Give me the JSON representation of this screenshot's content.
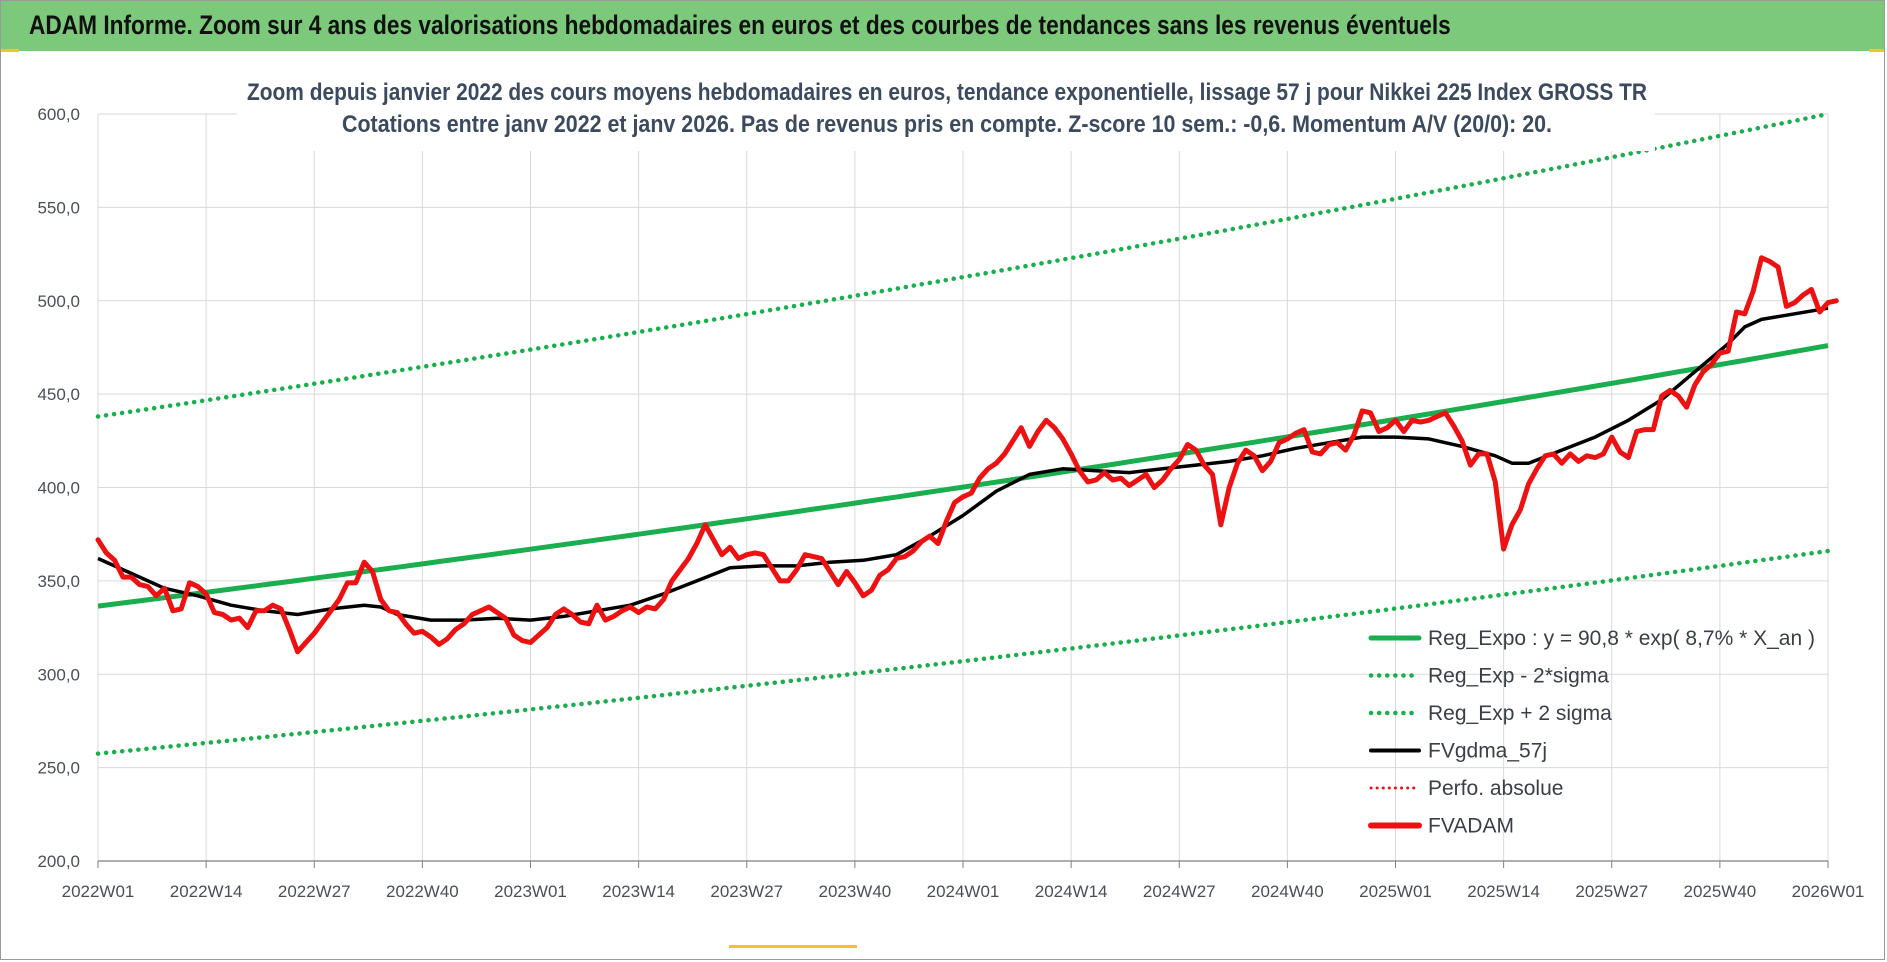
{
  "banner": {
    "title": "ADAM Informe. Zoom sur 4 ans des valorisations hebdomadaires en euros et des courbes de tendances sans les revenus éventuels"
  },
  "colors": {
    "banner": "#7dc97b",
    "reg_expo": "#1aae4e",
    "sigma": "#1aae4e",
    "fvgdma": "#000000",
    "perfo": "#e8141b",
    "fvadam": "#ee1111",
    "grid": "#d9d9d9",
    "title_text": "#3b4a5e",
    "accent": "#f2c230"
  },
  "chart_data": {
    "type": "line",
    "title": [
      "Zoom depuis janvier 2022 des cours moyens hebdomadaires en euros, tendance exponentielle, lissage 57 j pour Nikkei 225 Index GROSS TR",
      "Cotations entre janv 2022 et janv 2026. Pas de revenus pris en compte. Z-score 10 sem.: -0,6. Momentum A/V (20/0): 20."
    ],
    "ylim": [
      200,
      600
    ],
    "yticks": [
      "200,0",
      "250,0",
      "300,0",
      "350,0",
      "400,0",
      "450,0",
      "500,0",
      "550,0",
      "600,0"
    ],
    "x_range_weeks": [
      0,
      208
    ],
    "xticks": [
      {
        "w": 0,
        "label": "2022W01"
      },
      {
        "w": 13,
        "label": "2022W14"
      },
      {
        "w": 26,
        "label": "2022W27"
      },
      {
        "w": 39,
        "label": "2022W40"
      },
      {
        "w": 52,
        "label": "2023W01"
      },
      {
        "w": 65,
        "label": "2023W14"
      },
      {
        "w": 78,
        "label": "2023W27"
      },
      {
        "w": 91,
        "label": "2023W40"
      },
      {
        "w": 104,
        "label": "2024W01"
      },
      {
        "w": 117,
        "label": "2024W14"
      },
      {
        "w": 130,
        "label": "2024W27"
      },
      {
        "w": 143,
        "label": "2024W40"
      },
      {
        "w": 156,
        "label": "2025W01"
      },
      {
        "w": 169,
        "label": "2025W14"
      },
      {
        "w": 182,
        "label": "2025W27"
      },
      {
        "w": 195,
        "label": "2025W40"
      },
      {
        "w": 208,
        "label": "2026W01"
      }
    ],
    "series": [
      {
        "name": "Reg_Expo : y = 90,8 * exp( 8,7% *  X_an )",
        "key": "reg_expo",
        "style": "solid-thick",
        "start": [
          0,
          336.5
        ],
        "end": [
          208,
          476
        ]
      },
      {
        "name": "Reg_Exp - 2*sigma",
        "key": "reg_minus",
        "style": "dotted",
        "start": [
          0,
          257.5
        ],
        "end": [
          208,
          366
        ]
      },
      {
        "name": "Reg_Exp + 2 sigma",
        "key": "reg_plus",
        "style": "dotted",
        "start": [
          0,
          438
        ],
        "end": [
          208,
          600
        ]
      },
      {
        "name": "FVgdma_57j",
        "key": "fvgdma",
        "style": "solid",
        "points": [
          [
            0,
            362
          ],
          [
            4,
            354
          ],
          [
            8,
            346
          ],
          [
            10,
            344
          ],
          [
            12,
            342
          ],
          [
            16,
            337
          ],
          [
            20,
            334
          ],
          [
            24,
            332
          ],
          [
            28,
            335
          ],
          [
            32,
            337
          ],
          [
            34,
            336
          ],
          [
            36,
            332
          ],
          [
            40,
            329
          ],
          [
            44,
            329
          ],
          [
            48,
            330
          ],
          [
            52,
            329
          ],
          [
            56,
            331
          ],
          [
            60,
            334
          ],
          [
            64,
            337
          ],
          [
            68,
            343
          ],
          [
            72,
            350
          ],
          [
            76,
            357
          ],
          [
            80,
            358
          ],
          [
            84,
            358
          ],
          [
            88,
            360
          ],
          [
            92,
            361
          ],
          [
            96,
            364
          ],
          [
            100,
            374
          ],
          [
            104,
            385
          ],
          [
            108,
            398
          ],
          [
            112,
            407
          ],
          [
            116,
            410
          ],
          [
            120,
            409
          ],
          [
            124,
            408
          ],
          [
            128,
            410
          ],
          [
            132,
            412
          ],
          [
            136,
            414
          ],
          [
            140,
            417
          ],
          [
            144,
            421
          ],
          [
            148,
            424
          ],
          [
            152,
            427
          ],
          [
            156,
            427
          ],
          [
            160,
            426
          ],
          [
            164,
            422
          ],
          [
            168,
            417
          ],
          [
            170,
            413
          ],
          [
            172,
            413
          ],
          [
            176,
            420
          ],
          [
            180,
            427
          ],
          [
            184,
            436
          ],
          [
            188,
            447
          ],
          [
            192,
            462
          ],
          [
            196,
            477
          ],
          [
            198,
            486
          ],
          [
            200,
            490
          ],
          [
            204,
            493
          ],
          [
            208,
            496
          ]
        ]
      },
      {
        "name": "Perfo. absolue",
        "key": "perfo",
        "style": "dotted-red",
        "points": []
      },
      {
        "name": "FVADAM",
        "key": "fvadam",
        "style": "solid-thick-red",
        "points": [
          [
            0,
            372
          ],
          [
            1,
            365
          ],
          [
            2,
            361
          ],
          [
            3,
            352
          ],
          [
            4,
            352
          ],
          [
            5,
            348
          ],
          [
            6,
            347
          ],
          [
            7,
            342
          ],
          [
            8,
            346
          ],
          [
            9,
            334
          ],
          [
            10,
            335
          ],
          [
            11,
            349
          ],
          [
            12,
            347
          ],
          [
            13,
            343
          ],
          [
            14,
            333
          ],
          [
            15,
            332
          ],
          [
            16,
            329
          ],
          [
            17,
            330
          ],
          [
            18,
            325
          ],
          [
            19,
            334
          ],
          [
            20,
            334
          ],
          [
            21,
            337
          ],
          [
            22,
            335
          ],
          [
            23,
            324
          ],
          [
            24,
            312
          ],
          [
            25,
            317
          ],
          [
            26,
            322
          ],
          [
            27,
            328
          ],
          [
            28,
            334
          ],
          [
            29,
            340
          ],
          [
            30,
            349
          ],
          [
            31,
            349
          ],
          [
            32,
            360
          ],
          [
            33,
            355
          ],
          [
            34,
            340
          ],
          [
            35,
            334
          ],
          [
            36,
            333
          ],
          [
            37,
            327
          ],
          [
            38,
            322
          ],
          [
            39,
            323
          ],
          [
            40,
            320
          ],
          [
            41,
            316
          ],
          [
            42,
            319
          ],
          [
            43,
            324
          ],
          [
            44,
            327
          ],
          [
            45,
            332
          ],
          [
            46,
            334
          ],
          [
            47,
            336
          ],
          [
            48,
            333
          ],
          [
            49,
            330
          ],
          [
            50,
            321
          ],
          [
            51,
            318
          ],
          [
            52,
            317
          ],
          [
            53,
            321
          ],
          [
            54,
            325
          ],
          [
            55,
            332
          ],
          [
            56,
            335
          ],
          [
            57,
            332
          ],
          [
            58,
            328
          ],
          [
            59,
            327
          ],
          [
            60,
            337
          ],
          [
            61,
            329
          ],
          [
            62,
            331
          ],
          [
            63,
            334
          ],
          [
            64,
            336
          ],
          [
            65,
            333
          ],
          [
            66,
            336
          ],
          [
            67,
            335
          ],
          [
            68,
            340
          ],
          [
            69,
            350
          ],
          [
            70,
            356
          ],
          [
            71,
            362
          ],
          [
            72,
            370
          ],
          [
            73,
            380
          ],
          [
            74,
            372
          ],
          [
            75,
            364
          ],
          [
            76,
            368
          ],
          [
            77,
            362
          ],
          [
            78,
            364
          ],
          [
            79,
            365
          ],
          [
            80,
            364
          ],
          [
            81,
            357
          ],
          [
            82,
            350
          ],
          [
            83,
            350
          ],
          [
            84,
            356
          ],
          [
            85,
            364
          ],
          [
            86,
            363
          ],
          [
            87,
            362
          ],
          [
            88,
            355
          ],
          [
            89,
            348
          ],
          [
            90,
            355
          ],
          [
            91,
            349
          ],
          [
            92,
            342
          ],
          [
            93,
            345
          ],
          [
            94,
            353
          ],
          [
            95,
            356
          ],
          [
            96,
            362
          ],
          [
            97,
            363
          ],
          [
            98,
            366
          ],
          [
            99,
            371
          ],
          [
            100,
            374
          ],
          [
            101,
            370
          ],
          [
            102,
            382
          ],
          [
            103,
            392
          ],
          [
            104,
            395
          ],
          [
            105,
            397
          ],
          [
            106,
            405
          ],
          [
            107,
            410
          ],
          [
            108,
            413
          ],
          [
            109,
            418
          ],
          [
            110,
            425
          ],
          [
            111,
            432
          ],
          [
            112,
            422
          ],
          [
            113,
            430
          ],
          [
            114,
            436
          ],
          [
            115,
            432
          ],
          [
            116,
            426
          ],
          [
            117,
            418
          ],
          [
            118,
            409
          ],
          [
            119,
            403
          ],
          [
            120,
            404
          ],
          [
            121,
            408
          ],
          [
            122,
            404
          ],
          [
            123,
            405
          ],
          [
            124,
            401
          ],
          [
            125,
            404
          ],
          [
            126,
            407
          ],
          [
            127,
            400
          ],
          [
            128,
            404
          ],
          [
            129,
            410
          ],
          [
            130,
            415
          ],
          [
            131,
            423
          ],
          [
            132,
            420
          ],
          [
            133,
            412
          ],
          [
            134,
            407
          ],
          [
            135,
            380
          ],
          [
            136,
            400
          ],
          [
            137,
            413
          ],
          [
            138,
            420
          ],
          [
            139,
            417
          ],
          [
            140,
            409
          ],
          [
            141,
            414
          ],
          [
            142,
            424
          ],
          [
            143,
            426
          ],
          [
            144,
            429
          ],
          [
            145,
            431
          ],
          [
            146,
            419
          ],
          [
            147,
            418
          ],
          [
            148,
            423
          ],
          [
            149,
            424
          ],
          [
            150,
            420
          ],
          [
            151,
            428
          ],
          [
            152,
            441
          ],
          [
            153,
            440
          ],
          [
            154,
            430
          ],
          [
            155,
            432
          ],
          [
            156,
            436
          ],
          [
            157,
            430
          ],
          [
            158,
            436
          ],
          [
            159,
            435
          ],
          [
            160,
            436
          ],
          [
            161,
            438
          ],
          [
            162,
            440
          ],
          [
            163,
            433
          ],
          [
            164,
            425
          ],
          [
            165,
            412
          ],
          [
            166,
            418
          ],
          [
            167,
            418
          ],
          [
            168,
            403
          ],
          [
            169,
            367
          ],
          [
            170,
            380
          ],
          [
            171,
            388
          ],
          [
            172,
            402
          ],
          [
            173,
            410
          ],
          [
            174,
            417
          ],
          [
            175,
            418
          ],
          [
            176,
            413
          ],
          [
            177,
            418
          ],
          [
            178,
            414
          ],
          [
            179,
            417
          ],
          [
            180,
            416
          ],
          [
            181,
            418
          ],
          [
            182,
            427
          ],
          [
            183,
            419
          ],
          [
            184,
            416
          ],
          [
            185,
            430
          ],
          [
            186,
            431
          ],
          [
            187,
            431
          ],
          [
            188,
            449
          ],
          [
            189,
            452
          ],
          [
            190,
            449
          ],
          [
            191,
            443
          ],
          [
            192,
            455
          ],
          [
            193,
            462
          ],
          [
            194,
            466
          ],
          [
            195,
            472
          ],
          [
            196,
            473
          ],
          [
            197,
            494
          ],
          [
            198,
            493
          ],
          [
            199,
            505
          ],
          [
            200,
            523
          ],
          [
            201,
            521
          ],
          [
            202,
            518
          ],
          [
            203,
            497
          ],
          [
            204,
            499
          ],
          [
            205,
            503
          ],
          [
            206,
            506
          ],
          [
            207,
            494
          ],
          [
            208,
            499
          ],
          [
            209,
            500
          ]
        ]
      }
    ],
    "legend": {
      "position": "bottom-right"
    }
  }
}
